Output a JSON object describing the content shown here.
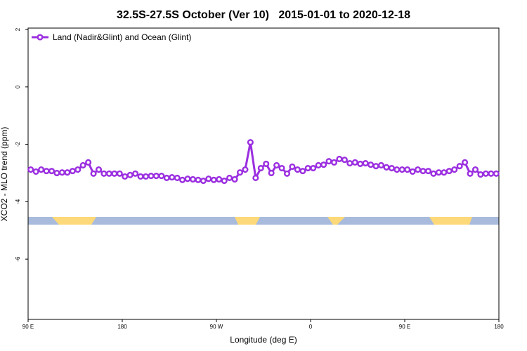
{
  "chart_data": {
    "type": "line",
    "title": "32.5S-27.5S October (Ver 10)   2015-01-01 to 2020-12-18",
    "xlabel": "Longitude (deg E)",
    "ylabel": "XCO2 - MLO trend (ppm)",
    "xlim": [
      90,
      540
    ],
    "ylim": [
      -8.1,
      2.05
    ],
    "xticks": [
      {
        "value": 90,
        "label": "90 E"
      },
      {
        "value": 180,
        "label": "180"
      },
      {
        "value": 270,
        "label": "90 W"
      },
      {
        "value": 360,
        "label": "0"
      },
      {
        "value": 450,
        "label": "90 E"
      },
      {
        "value": 540,
        "label": "180"
      }
    ],
    "yticks": [
      2,
      0,
      -2,
      -4,
      -6
    ],
    "legend": "top-left",
    "x": [
      92.5,
      97.5,
      102.5,
      107.5,
      112.5,
      117.5,
      122.5,
      127.5,
      132.5,
      137.5,
      142.5,
      147.5,
      152.5,
      157.5,
      162.5,
      167.5,
      172.5,
      177.5,
      182.5,
      187.5,
      192.5,
      197.5,
      202.5,
      207.5,
      212.5,
      217.5,
      222.5,
      227.5,
      232.5,
      237.5,
      242.5,
      247.5,
      252.5,
      257.5,
      262.5,
      267.5,
      272.5,
      277.5,
      282.5,
      287.5,
      292.5,
      297.5,
      302.5,
      307.5,
      312.5,
      317.5,
      322.5,
      327.5,
      332.5,
      337.5,
      342.5,
      347.5,
      352.5,
      357.5,
      362.5,
      367.5,
      372.5,
      377.5,
      382.5,
      387.5,
      392.5,
      397.5,
      402.5,
      407.5,
      412.5,
      417.5,
      422.5,
      427.5,
      432.5,
      437.5,
      442.5,
      447.5,
      452.5,
      457.5,
      462.5,
      467.5,
      472.5,
      477.5,
      482.5,
      487.5,
      492.5,
      497.5,
      502.5,
      507.5,
      512.5,
      517.5,
      522.5,
      527.5,
      532.5,
      537.5
    ],
    "series": [
      {
        "name": "Land (Nadir&Glint) and Ocean (Glint)",
        "color": "#9b2fe0",
        "values": [
          -2.88,
          -2.95,
          -2.88,
          -2.93,
          -2.93,
          -3.0,
          -2.98,
          -2.98,
          -2.93,
          -2.88,
          -2.73,
          -2.63,
          -3.02,
          -2.88,
          -3.02,
          -3.02,
          -3.02,
          -3.02,
          -3.12,
          -3.07,
          -3.02,
          -3.12,
          -3.12,
          -3.1,
          -3.1,
          -3.1,
          -3.17,
          -3.15,
          -3.17,
          -3.24,
          -3.2,
          -3.22,
          -3.24,
          -3.27,
          -3.2,
          -3.24,
          -3.22,
          -3.27,
          -3.17,
          -3.22,
          -2.98,
          -2.88,
          -1.93,
          -3.17,
          -2.83,
          -2.68,
          -3.0,
          -2.73,
          -2.83,
          -3.02,
          -2.78,
          -2.88,
          -2.93,
          -2.83,
          -2.83,
          -2.73,
          -2.71,
          -2.59,
          -2.63,
          -2.51,
          -2.54,
          -2.66,
          -2.63,
          -2.68,
          -2.66,
          -2.71,
          -2.76,
          -2.73,
          -2.8,
          -2.83,
          -2.88,
          -2.88,
          -2.88,
          -2.95,
          -2.88,
          -2.93,
          -2.93,
          -3.02,
          -2.98,
          -2.98,
          -2.93,
          -2.88,
          -2.76,
          -2.63,
          -3.02,
          -2.88,
          -3.05,
          -3.02,
          -3.02,
          -3.02
        ]
      }
    ]
  }
}
